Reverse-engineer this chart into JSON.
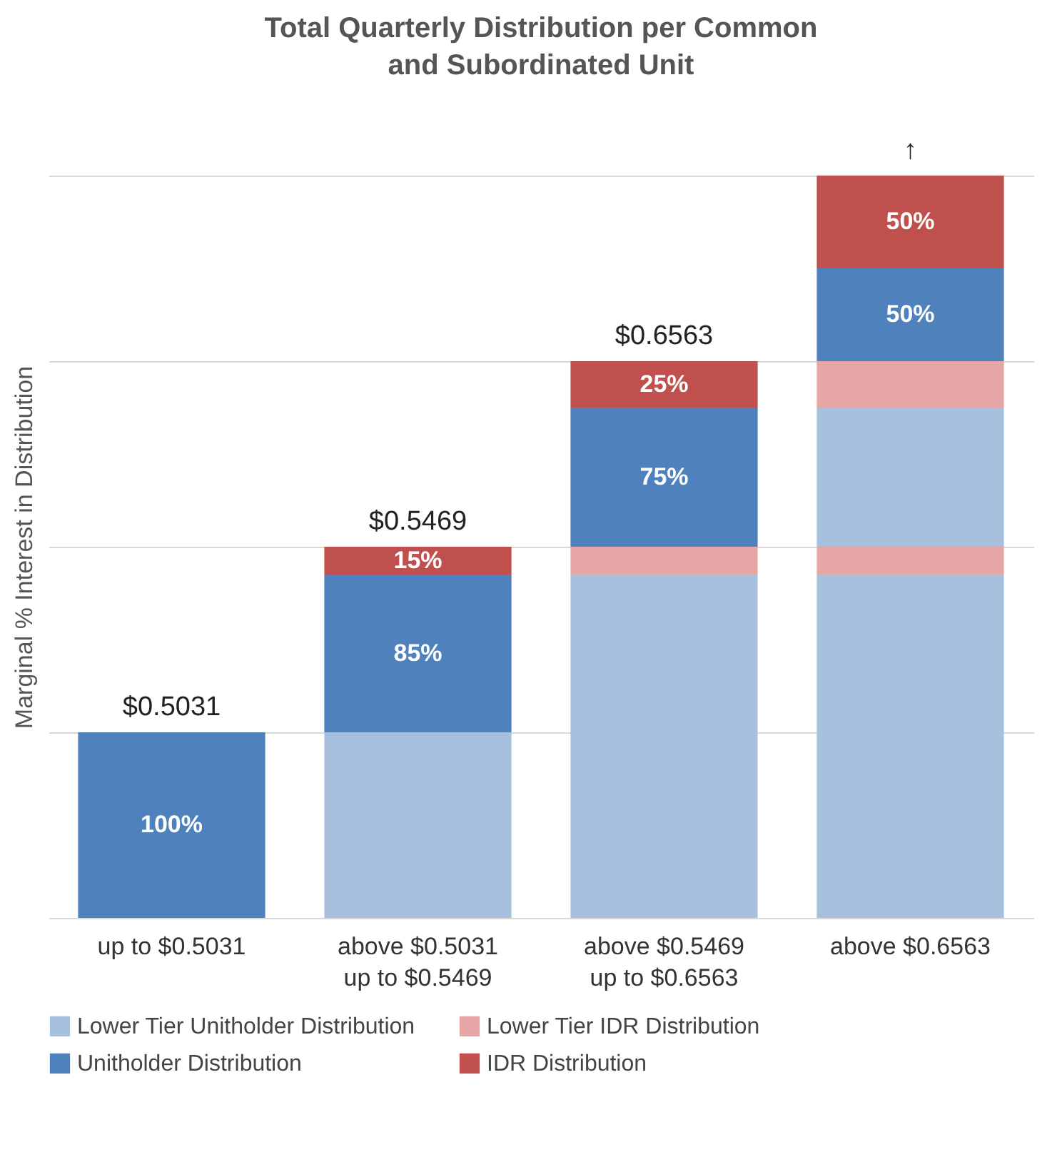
{
  "chart_data": {
    "type": "bar",
    "title": "Total Quarterly Distribution per Common and Subordinated Unit",
    "ylabel": "Marginal % Interest in Distribution",
    "stacked": true,
    "grid": "y",
    "legend": "bottom",
    "tick_labels": "x",
    "ylim": [
      0,
      400
    ],
    "yticks": [
      {
        "value": 0,
        "label": null
      },
      {
        "value": 100,
        "label": null
      },
      {
        "value": 200,
        "label": null
      },
      {
        "value": 300,
        "label": null
      },
      {
        "value": 400,
        "label": null
      }
    ],
    "categories": [
      "up to $0.5031",
      "above $0.5031 up to $0.5469",
      "above $0.5469 up to $0.6563",
      "above $0.6563"
    ],
    "series": [
      {
        "name": "Lower Tier Unitholder Distribution",
        "color": "#a7c0de",
        "values": [
          0,
          100,
          185,
          185
        ]
      },
      {
        "name": "Lower Tier IDR Distribution",
        "color": "#e6a6a5",
        "values": [
          0,
          0,
          15,
          15
        ]
      },
      {
        "color": "#a7c0de",
        "values": [
          0,
          0,
          0,
          75
        ]
      },
      {
        "color": "#e6a6a5",
        "values": [
          0,
          0,
          0,
          25
        ]
      },
      {
        "name": "Unitholder Distribution",
        "color": "#4f81bd",
        "values": [
          100,
          85,
          75,
          50
        ],
        "value_labels": [
          "100%",
          "85%",
          "75%",
          "50%"
        ]
      },
      {
        "name": "IDR Distribution",
        "color": "#c0504d",
        "values": [
          0,
          15,
          25,
          50
        ],
        "value_labels": [
          null,
          "15%",
          "25%",
          "50%"
        ]
      }
    ],
    "annotations": [
      {
        "text": "$0.5031",
        "x": "up to $0.5031",
        "y": 100
      },
      {
        "text": "$0.5469",
        "x": "above $0.5031 up to $0.5469",
        "y": 200
      },
      {
        "text": "$0.6563",
        "x": "above $0.5469 up to $0.6563",
        "y": 300
      },
      {
        "text": "↑",
        "x": "above $0.6563",
        "y": 400
      }
    ]
  }
}
